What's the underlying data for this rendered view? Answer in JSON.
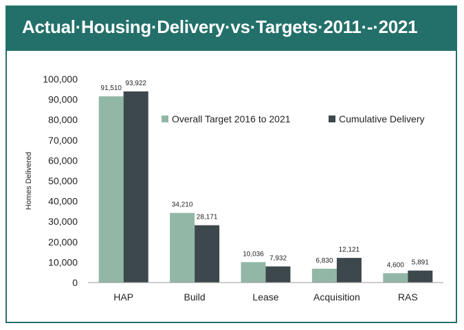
{
  "header": {
    "title": "Actual·Housing·Delivery·vs·Targets·2011·-·2021"
  },
  "colors": {
    "header_bg": "#23706a",
    "target": "#92b7a7",
    "delivery": "#3d484c"
  },
  "chart_data": {
    "type": "bar",
    "title": "",
    "xlabel": "",
    "ylabel": "Homes Delivered",
    "ylim": [
      0,
      100000
    ],
    "yticks": [
      0,
      10000,
      20000,
      30000,
      40000,
      50000,
      60000,
      70000,
      80000,
      90000,
      100000
    ],
    "ytick_labels": [
      "0",
      "10,000",
      "20,000",
      "30,000",
      "40,000",
      "50,000",
      "60,000",
      "70,000",
      "80,000",
      "90,000",
      "100,000"
    ],
    "categories": [
      "HAP",
      "Build",
      "Lease",
      "Acquisition",
      "RAS"
    ],
    "series": [
      {
        "name": "Overall Target 2016 to 2021",
        "color": "#92b7a7",
        "values": [
          91510,
          34210,
          10036,
          6830,
          4600
        ],
        "labels": [
          "91,510",
          "34,210",
          "10,036",
          "6,830",
          "4,600"
        ]
      },
      {
        "name": "Cumulative Delivery",
        "color": "#3d484c",
        "values": [
          93922,
          28171,
          7932,
          12121,
          5891
        ],
        "labels": [
          "93,922",
          "28,171",
          "7,932",
          "12,121",
          "5,891"
        ]
      }
    ],
    "grid": false,
    "legend": "top-right"
  }
}
